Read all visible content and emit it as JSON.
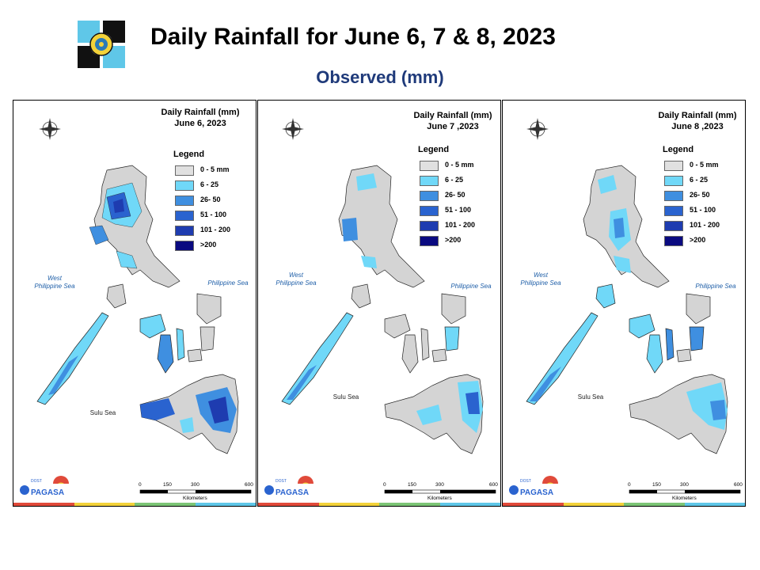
{
  "header": {
    "title": "Daily Rainfall for June 6, 7 & 8, 2023",
    "subtitle": "Observed (mm)"
  },
  "colors": {
    "title_sub": "#1f3a7a",
    "legend": [
      "#e0e0e0",
      "#70d8f8",
      "#3f8fe0",
      "#2a63cf",
      "#1e3cb0",
      "#0a0a80"
    ],
    "land_dry": "#d4d4d4",
    "sea_label": "#1f5fa8"
  },
  "panels": [
    {
      "title_line1": "Daily Rainfall (mm)",
      "title_line2": "June 6, 2023",
      "legend_title": "Legend",
      "legend_items": [
        "0 - 5 mm",
        "6 - 25",
        "26- 50",
        "51 - 100",
        "101 - 200",
        ">200"
      ],
      "west_sea_line1": "West",
      "west_sea_line2": "Philippine Sea",
      "east_sea": "Philippine Sea",
      "south_sea": "Sulu Sea",
      "scale_ticks": [
        "0",
        "150",
        "300",
        "600"
      ],
      "scale_unit": "Kilometers"
    },
    {
      "title_line1": "Daily Rainfall (mm)",
      "title_line2": "June 7 ,2023",
      "legend_title": "Legend",
      "legend_items": [
        "0 - 5 mm",
        "6 - 25",
        "26- 50",
        "51 - 100",
        "101 - 200",
        ">200"
      ],
      "west_sea_line1": "West",
      "west_sea_line2": "Philippine Sea",
      "east_sea": "Philippine Sea",
      "south_sea": "Sulu Sea",
      "scale_ticks": [
        "0",
        "150",
        "300",
        "600"
      ],
      "scale_unit": "Kilometers"
    },
    {
      "title_line1": "Daily Rainfall (mm)",
      "title_line2": "June 8 ,2023",
      "legend_title": "Legend",
      "legend_items": [
        "0 - 5 mm",
        "6 - 25",
        "26- 50",
        "51 - 100",
        "101 - 200",
        ">200"
      ],
      "west_sea_line1": "West",
      "west_sea_line2": "Philippine Sea",
      "east_sea": "Philippine Sea",
      "south_sea": "Sulu Sea",
      "scale_ticks": [
        "0",
        "150",
        "300",
        "600"
      ],
      "scale_unit": "Kilometers"
    }
  ],
  "compass": {
    "n": "N",
    "s": "S",
    "e": "E",
    "w": "W"
  },
  "brand": {
    "small": "DOST",
    "name": "PAGASA"
  }
}
